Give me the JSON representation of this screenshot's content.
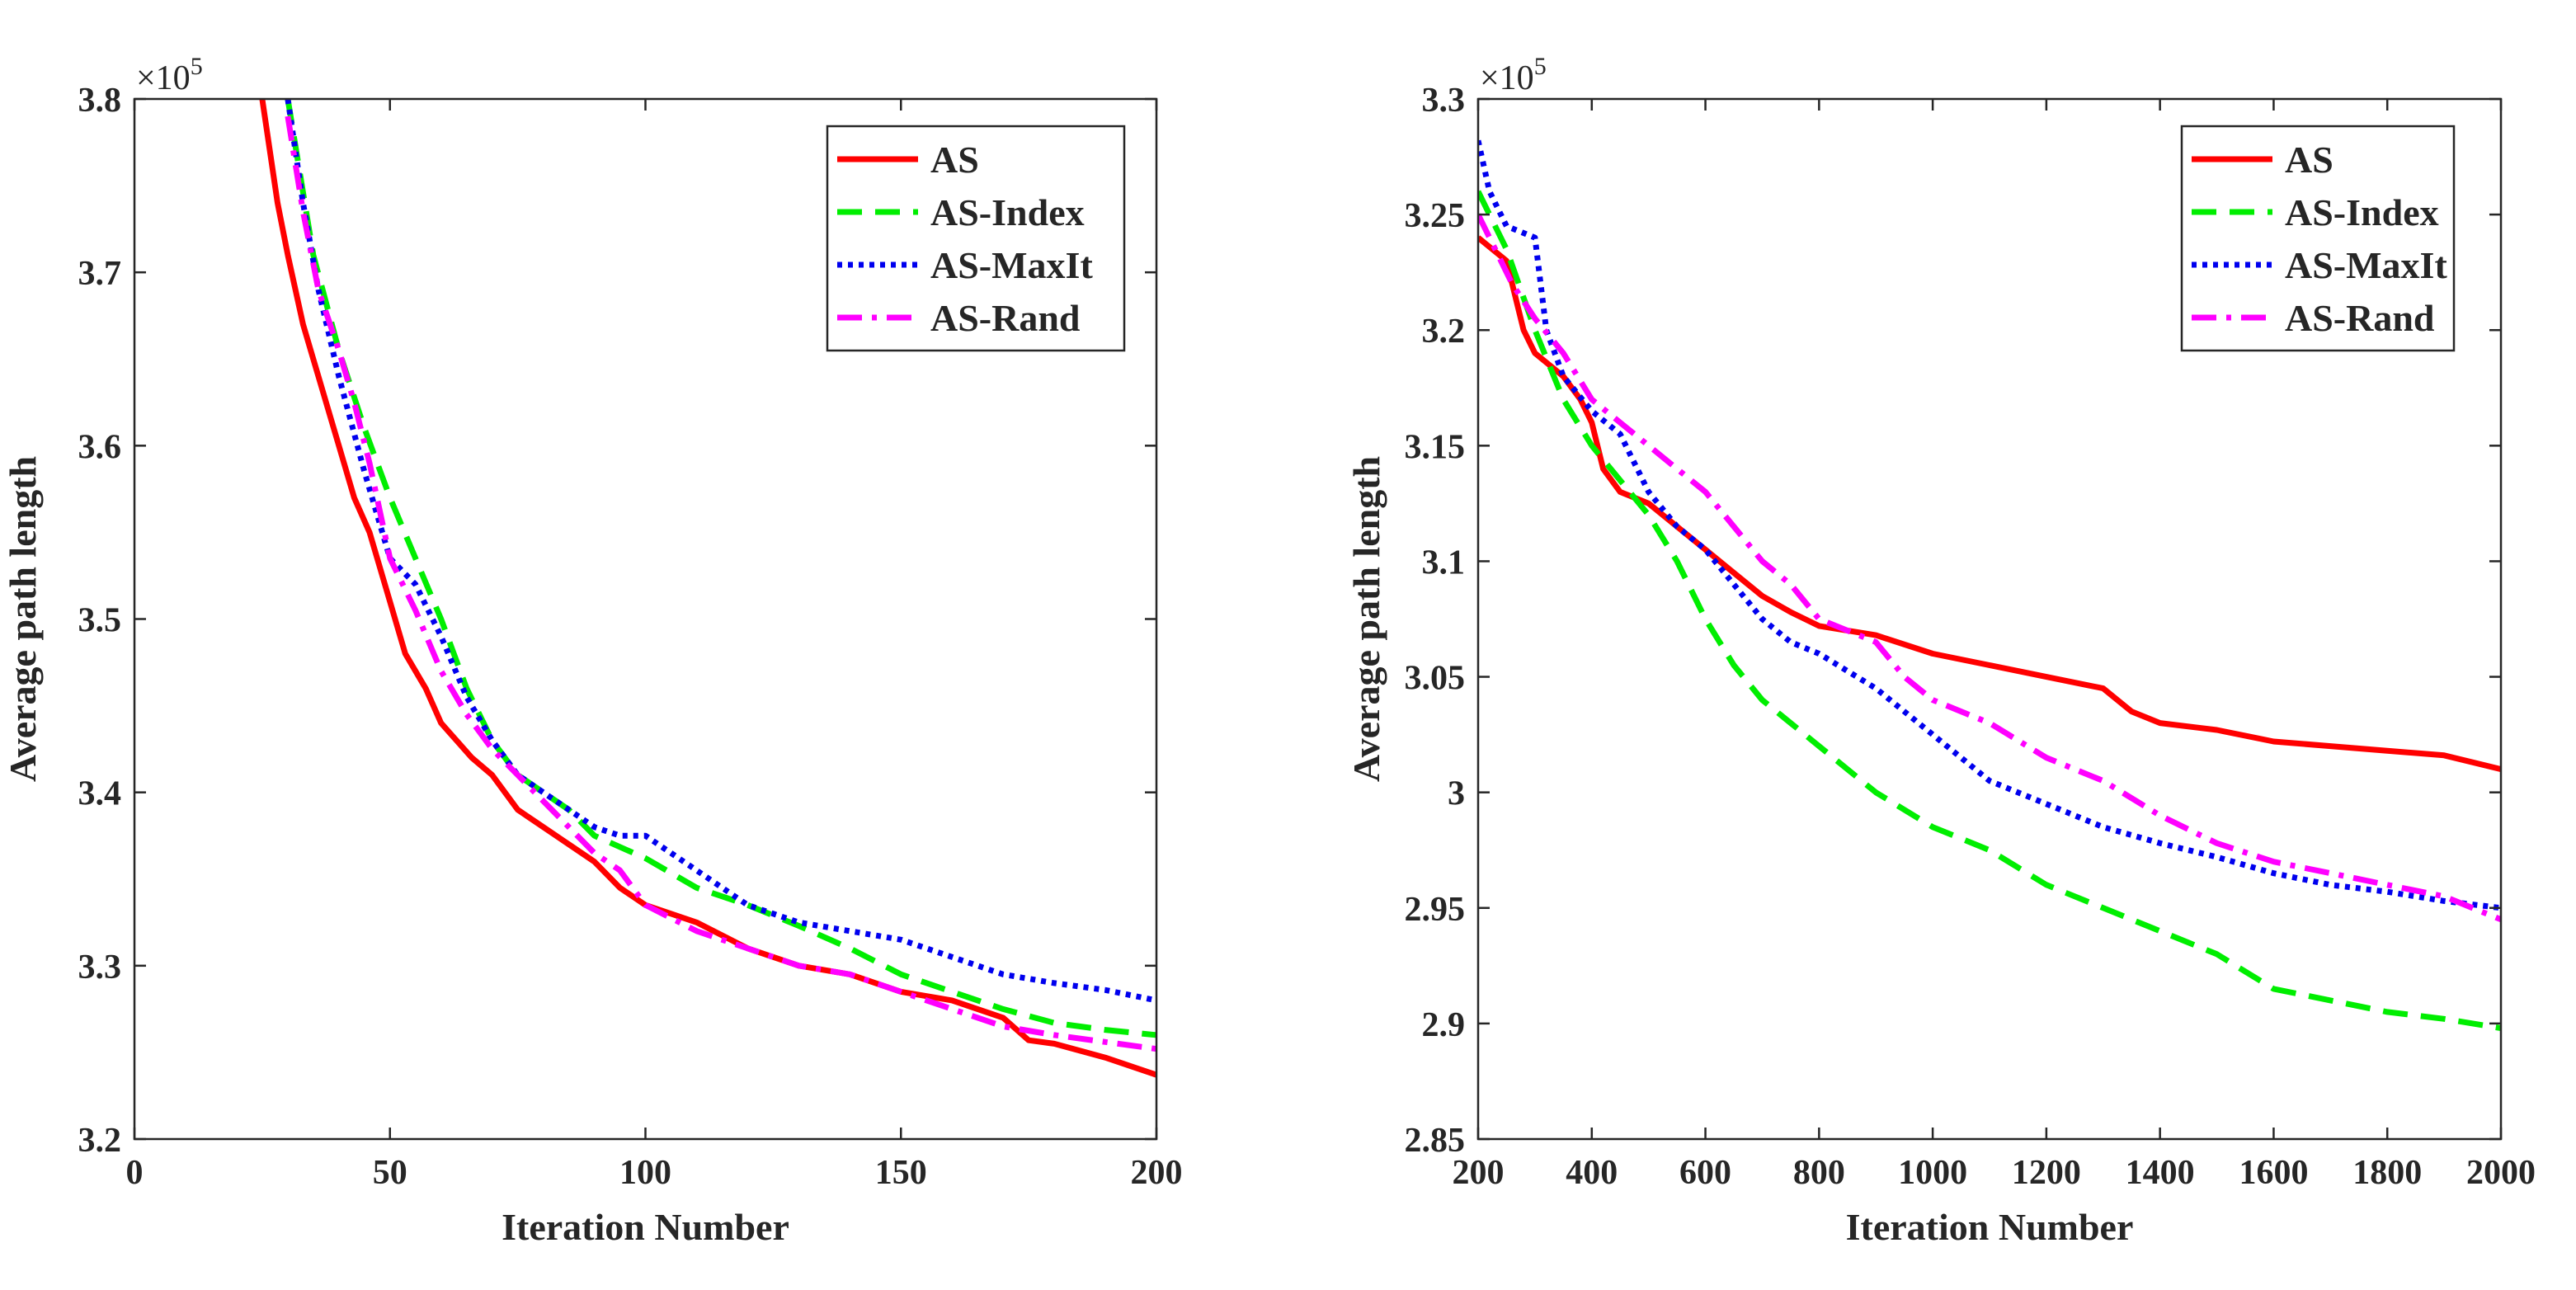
{
  "chart_data": [
    {
      "type": "line",
      "xlabel": "Iteration Number",
      "ylabel": "Average path length",
      "y_multiplier": "×10^5",
      "xlim": [
        0,
        200
      ],
      "ylim": [
        3.2,
        3.8
      ],
      "xticks": [
        "0",
        "50",
        "100",
        "150",
        "200"
      ],
      "yticks": [
        "3.2",
        "3.3",
        "3.4",
        "3.5",
        "3.6",
        "3.7",
        "3.8"
      ],
      "legend_position": "top-right",
      "grid": false,
      "series": [
        {
          "name": "AS",
          "color": "#ff0000",
          "dash": "solid",
          "x": [
            25,
            28,
            30,
            33,
            36,
            40,
            43,
            46,
            50,
            53,
            57,
            60,
            63,
            66,
            70,
            75,
            80,
            85,
            90,
            95,
            100,
            110,
            120,
            130,
            140,
            150,
            160,
            170,
            175,
            180,
            190,
            195,
            200
          ],
          "y": [
            3.8,
            3.74,
            3.71,
            3.67,
            3.64,
            3.6,
            3.57,
            3.55,
            3.51,
            3.48,
            3.46,
            3.44,
            3.43,
            3.42,
            3.41,
            3.39,
            3.38,
            3.37,
            3.36,
            3.345,
            3.335,
            3.325,
            3.31,
            3.3,
            3.295,
            3.285,
            3.28,
            3.27,
            3.257,
            3.255,
            3.247,
            3.242,
            3.237
          ]
        },
        {
          "name": "AS-Index",
          "color": "#00ee00",
          "dash": "dashed",
          "x": [
            30,
            35,
            40,
            45,
            50,
            55,
            60,
            65,
            70,
            75,
            80,
            85,
            90,
            100,
            110,
            120,
            130,
            140,
            150,
            160,
            170,
            180,
            190,
            200
          ],
          "y": [
            3.8,
            3.71,
            3.655,
            3.61,
            3.57,
            3.535,
            3.5,
            3.46,
            3.43,
            3.41,
            3.4,
            3.39,
            3.375,
            3.362,
            3.345,
            3.335,
            3.323,
            3.31,
            3.295,
            3.285,
            3.275,
            3.267,
            3.263,
            3.26
          ]
        },
        {
          "name": "AS-MaxIt",
          "color": "#0000ee",
          "dash": "dotted",
          "x": [
            30,
            33,
            36,
            40,
            45,
            50,
            55,
            60,
            65,
            70,
            75,
            80,
            85,
            90,
            95,
            100,
            105,
            110,
            120,
            130,
            140,
            150,
            160,
            170,
            180,
            190,
            200
          ],
          "y": [
            3.8,
            3.74,
            3.69,
            3.64,
            3.585,
            3.535,
            3.52,
            3.49,
            3.455,
            3.43,
            3.41,
            3.4,
            3.39,
            3.38,
            3.375,
            3.375,
            3.365,
            3.355,
            3.335,
            3.325,
            3.32,
            3.315,
            3.305,
            3.295,
            3.29,
            3.286,
            3.28
          ]
        },
        {
          "name": "AS-Rand",
          "color": "#ff00ff",
          "dash": "dashdot",
          "x": [
            30,
            33,
            36,
            40,
            43,
            46,
            50,
            55,
            60,
            65,
            70,
            75,
            80,
            85,
            90,
            95,
            100,
            110,
            120,
            130,
            140,
            150,
            160,
            170,
            180,
            190,
            200
          ],
          "y": [
            3.79,
            3.735,
            3.69,
            3.655,
            3.625,
            3.59,
            3.535,
            3.505,
            3.47,
            3.445,
            3.425,
            3.41,
            3.395,
            3.38,
            3.365,
            3.355,
            3.335,
            3.32,
            3.31,
            3.3,
            3.295,
            3.285,
            3.275,
            3.265,
            3.26,
            3.256,
            3.252
          ]
        }
      ]
    },
    {
      "type": "line",
      "xlabel": "Iteration Number",
      "ylabel": "Average path length",
      "y_multiplier": "×10^5",
      "xlim": [
        200,
        2000
      ],
      "ylim": [
        2.85,
        3.3
      ],
      "xticks": [
        "200",
        "400",
        "600",
        "800",
        "1000",
        "1200",
        "1400",
        "1600",
        "1800",
        "2000"
      ],
      "yticks": [
        "2.85",
        "2.9",
        "2.95",
        "3",
        "3.05",
        "3.1",
        "3.15",
        "3.2",
        "3.25",
        "3.3"
      ],
      "legend_position": "top-right",
      "grid": false,
      "series": [
        {
          "name": "AS",
          "color": "#ff0000",
          "dash": "solid",
          "x": [
            200,
            250,
            280,
            300,
            350,
            380,
            400,
            420,
            450,
            500,
            550,
            600,
            650,
            700,
            750,
            800,
            900,
            1000,
            1100,
            1200,
            1300,
            1350,
            1400,
            1500,
            1600,
            1700,
            1800,
            1900,
            2000
          ],
          "y": [
            3.24,
            3.23,
            3.2,
            3.19,
            3.18,
            3.17,
            3.16,
            3.14,
            3.13,
            3.125,
            3.115,
            3.105,
            3.095,
            3.085,
            3.078,
            3.072,
            3.068,
            3.06,
            3.055,
            3.05,
            3.045,
            3.035,
            3.03,
            3.027,
            3.022,
            3.02,
            3.018,
            3.016,
            3.01
          ]
        },
        {
          "name": "AS-Index",
          "color": "#00ee00",
          "dash": "dashed",
          "x": [
            200,
            250,
            300,
            350,
            400,
            450,
            500,
            550,
            600,
            650,
            700,
            750,
            800,
            900,
            1000,
            1100,
            1200,
            1300,
            1400,
            1500,
            1600,
            1700,
            1800,
            1900,
            2000
          ],
          "y": [
            3.26,
            3.235,
            3.2,
            3.17,
            3.15,
            3.135,
            3.12,
            3.1,
            3.075,
            3.055,
            3.04,
            3.03,
            3.02,
            3.0,
            2.985,
            2.975,
            2.96,
            2.95,
            2.94,
            2.93,
            2.915,
            2.91,
            2.905,
            2.902,
            2.898
          ]
        },
        {
          "name": "AS-MaxIt",
          "color": "#0000ee",
          "dash": "dotted",
          "x": [
            200,
            220,
            250,
            300,
            320,
            350,
            400,
            450,
            500,
            550,
            600,
            650,
            700,
            750,
            800,
            900,
            1000,
            1100,
            1200,
            1300,
            1400,
            1500,
            1600,
            1700,
            1800,
            1900,
            2000
          ],
          "y": [
            3.282,
            3.26,
            3.245,
            3.24,
            3.2,
            3.18,
            3.165,
            3.155,
            3.13,
            3.115,
            3.105,
            3.09,
            3.075,
            3.065,
            3.06,
            3.045,
            3.025,
            3.005,
            2.995,
            2.985,
            2.978,
            2.972,
            2.965,
            2.96,
            2.957,
            2.953,
            2.95
          ]
        },
        {
          "name": "AS-Rand",
          "color": "#ff00ff",
          "dash": "dashdot",
          "x": [
            200,
            230,
            260,
            300,
            350,
            400,
            450,
            500,
            550,
            600,
            650,
            700,
            750,
            800,
            850,
            900,
            950,
            1000,
            1100,
            1200,
            1300,
            1400,
            1500,
            1600,
            1700,
            1800,
            1900,
            2000
          ],
          "y": [
            3.25,
            3.235,
            3.22,
            3.205,
            3.19,
            3.17,
            3.16,
            3.15,
            3.14,
            3.13,
            3.115,
            3.1,
            3.09,
            3.075,
            3.07,
            3.065,
            3.05,
            3.04,
            3.03,
            3.015,
            3.005,
            2.99,
            2.978,
            2.97,
            2.965,
            2.96,
            2.955,
            2.945
          ]
        }
      ]
    }
  ]
}
